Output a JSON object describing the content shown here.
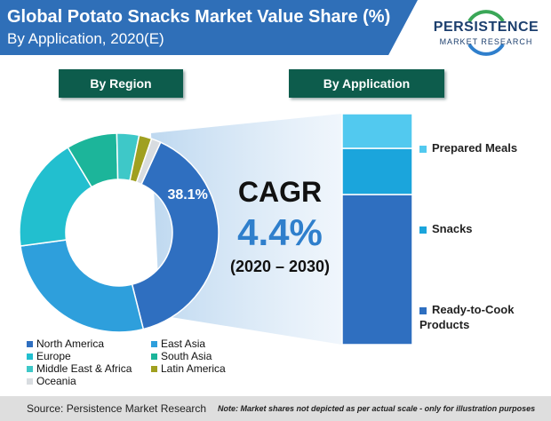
{
  "header": {
    "title": "Global Potato Snacks Market Value Share (%)",
    "subtitle": "By Application, 2020(E)"
  },
  "logo": {
    "name": "PERSISTENCE",
    "tagline": "MARKET RESEARCH",
    "colors": [
      "#1c3f6e",
      "#3aa757",
      "#2f7fcc"
    ]
  },
  "tabs": {
    "region": "By Region",
    "application": "By Application"
  },
  "cagr": {
    "label": "CAGR",
    "value": "4.4%",
    "period": "(2020 – 2030)"
  },
  "footer": {
    "source": "Source: Persistence Market Research",
    "note": "Note: Market shares not depicted as per actual scale - only for illustration purposes"
  },
  "chart_data": [
    {
      "type": "pie",
      "title": "By Region",
      "donut": true,
      "categories": [
        "North America",
        "East Asia",
        "Europe",
        "South Asia",
        "Middle East & Africa",
        "Latin America",
        "Oceania"
      ],
      "values": [
        38.1,
        26.0,
        18.0,
        8.0,
        3.5,
        2.0,
        1.5
      ],
      "data_labels": [
        "38.1%",
        "",
        "",
        "",
        "",
        "",
        ""
      ],
      "colors": [
        "#2f6fc0",
        "#2e9fdc",
        "#22bfcf",
        "#1cb59a",
        "#3ec8c8",
        "#a0a020",
        "#d8dce0"
      ],
      "legend": "bottom"
    },
    {
      "type": "bar",
      "stacked": true,
      "title": "By Application",
      "categories": [
        "Ready-to-Cook Products",
        "Snacks",
        "Prepared Meals"
      ],
      "values": [
        65,
        20,
        15
      ],
      "colors": [
        "#2f6fc0",
        "#1ba5dc",
        "#52c9ef"
      ],
      "legend": "right"
    }
  ]
}
